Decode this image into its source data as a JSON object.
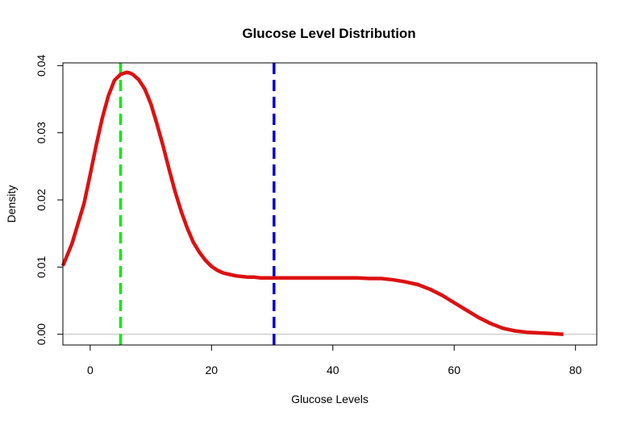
{
  "chart_data": {
    "type": "line",
    "title": "Glucose Level Distribution",
    "xlabel": "Glucose Levels",
    "ylabel": "Density",
    "xlim": [
      -4.5,
      83.5
    ],
    "ylim": [
      -0.0016,
      0.0404
    ],
    "x_ticks": [
      0,
      20,
      40,
      60,
      80
    ],
    "y_ticks": [
      0.0,
      0.01,
      0.02,
      0.03,
      0.04
    ],
    "x_tick_labels": [
      "0",
      "20",
      "40",
      "60",
      "80"
    ],
    "y_tick_labels": [
      "0.00",
      "0.01",
      "0.02",
      "0.03",
      "0.04"
    ],
    "grid": false,
    "zero_line": {
      "y": 0,
      "color": "#bebebe"
    },
    "series": [
      {
        "color": "#dd1111",
        "x": [
          -4.5,
          -3,
          -1,
          0,
          1,
          2,
          3,
          4,
          5,
          6,
          6.5,
          7,
          8,
          9,
          10,
          11,
          12,
          13,
          14,
          15,
          16,
          17,
          18,
          19,
          20,
          21,
          22,
          23,
          24,
          25,
          26,
          27,
          28,
          30,
          32,
          35,
          40,
          44,
          46,
          48,
          50,
          52,
          54,
          56,
          58,
          60,
          62,
          64,
          66,
          68,
          70,
          72,
          74,
          76,
          78
        ],
        "y": [
          0.0102,
          0.0135,
          0.0195,
          0.0238,
          0.0282,
          0.0322,
          0.0355,
          0.0378,
          0.0387,
          0.039,
          0.0389,
          0.0387,
          0.0379,
          0.0365,
          0.0343,
          0.0313,
          0.0281,
          0.0246,
          0.0212,
          0.0183,
          0.0158,
          0.0137,
          0.0122,
          0.011,
          0.0101,
          0.0095,
          0.0091,
          0.0089,
          0.0087,
          0.0086,
          0.0085,
          0.0085,
          0.0084,
          0.0084,
          0.0084,
          0.0084,
          0.0084,
          0.0084,
          0.0083,
          0.0083,
          0.0081,
          0.0078,
          0.0074,
          0.0067,
          0.0058,
          0.0047,
          0.0036,
          0.0025,
          0.0016,
          0.0009,
          0.0005,
          0.0003,
          0.0002,
          0.0001,
          0.0
        ]
      }
    ],
    "vlines": [
      {
        "x": 5,
        "color": "#00ee00",
        "style": "dashed"
      },
      {
        "x": 30.3,
        "color": "#0000cc",
        "style": "dashed"
      }
    ]
  }
}
